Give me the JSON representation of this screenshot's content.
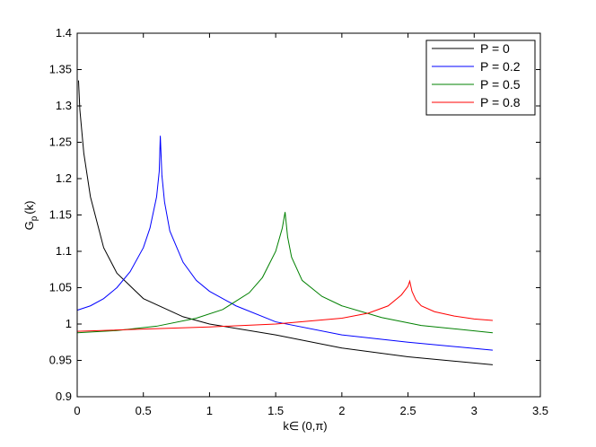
{
  "chart_data": {
    "type": "line",
    "title": "",
    "xlabel": {
      "base": "k",
      "elem": "∈",
      "range": "(0,π)"
    },
    "ylabel": {
      "base": "G",
      "sub": "p",
      "tail": "(k)"
    },
    "xlim": [
      0,
      3.5
    ],
    "ylim": [
      0.9,
      1.4
    ],
    "xticks": [
      0,
      0.5,
      1,
      1.5,
      2,
      2.5,
      3,
      3.5
    ],
    "xtick_labels": [
      "0",
      "0.5",
      "1",
      "1.5",
      "2",
      "2.5",
      "3",
      "3.5"
    ],
    "yticks": [
      0.9,
      0.95,
      1.0,
      1.05,
      1.1,
      1.15,
      1.2,
      1.25,
      1.3,
      1.35,
      1.4
    ],
    "ytick_labels": [
      "0.9",
      "0.95",
      "1",
      "1.05",
      "1.1",
      "1.15",
      "1.2",
      "1.25",
      "1.3",
      "1.35",
      "1.4"
    ],
    "grid": false,
    "legend_position": "top-right",
    "series": [
      {
        "name": "P = 0",
        "color": "#000000",
        "x": [
          0.01,
          0.02,
          0.05,
          0.1,
          0.2,
          0.3,
          0.5,
          0.8,
          1.0,
          1.5,
          2.0,
          2.5,
          3.14
        ],
        "y": [
          1.335,
          1.295,
          1.235,
          1.175,
          1.105,
          1.07,
          1.035,
          1.01,
          1.0,
          0.985,
          0.967,
          0.955,
          0.944
        ]
      },
      {
        "name": "P = 0.2",
        "color": "#0000ff",
        "x": [
          0.0,
          0.1,
          0.2,
          0.3,
          0.4,
          0.5,
          0.55,
          0.6,
          0.62,
          0.628,
          0.64,
          0.66,
          0.7,
          0.8,
          0.9,
          1.0,
          1.2,
          1.5,
          2.0,
          2.5,
          3.14
        ],
        "y": [
          1.019,
          1.025,
          1.035,
          1.05,
          1.072,
          1.105,
          1.132,
          1.175,
          1.21,
          1.259,
          1.205,
          1.168,
          1.128,
          1.085,
          1.06,
          1.045,
          1.025,
          1.003,
          0.985,
          0.975,
          0.964
        ]
      },
      {
        "name": "P = 0.5",
        "color": "#008000",
        "x": [
          0.0,
          0.3,
          0.6,
          0.9,
          1.1,
          1.3,
          1.4,
          1.5,
          1.55,
          1.571,
          1.59,
          1.62,
          1.7,
          1.85,
          2.0,
          2.3,
          2.6,
          3.14
        ],
        "y": [
          0.988,
          0.991,
          0.997,
          1.008,
          1.02,
          1.043,
          1.064,
          1.1,
          1.132,
          1.154,
          1.12,
          1.092,
          1.06,
          1.038,
          1.025,
          1.009,
          0.998,
          0.988
        ]
      },
      {
        "name": "P = 0.8",
        "color": "#ff0000",
        "x": [
          0.0,
          0.5,
          1.0,
          1.5,
          2.0,
          2.2,
          2.35,
          2.45,
          2.5,
          2.513,
          2.53,
          2.56,
          2.6,
          2.7,
          2.85,
          3.0,
          3.14
        ],
        "y": [
          0.99,
          0.993,
          0.996,
          1.0,
          1.008,
          1.015,
          1.025,
          1.04,
          1.052,
          1.059,
          1.045,
          1.033,
          1.025,
          1.017,
          1.011,
          1.007,
          1.005
        ]
      }
    ]
  }
}
